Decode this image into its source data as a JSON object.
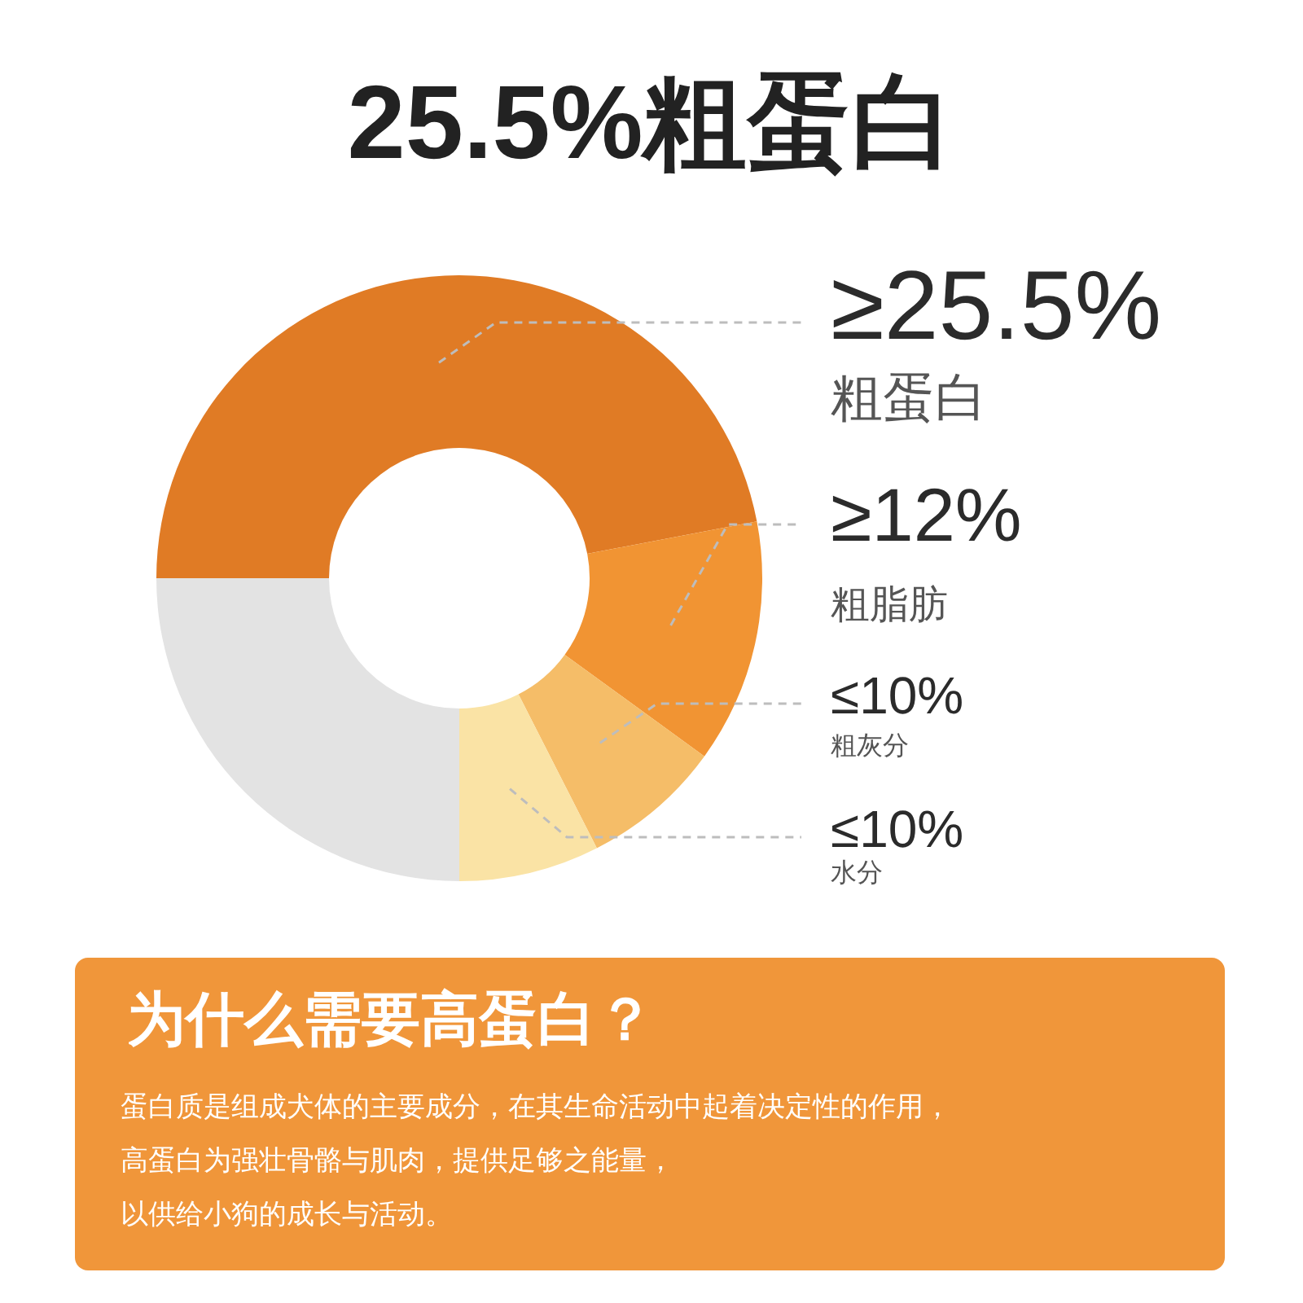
{
  "chart_data": {
    "type": "donut",
    "title": "25.5%粗蛋白",
    "categories": [
      "粗蛋白",
      "粗脂肪",
      "粗灰分",
      "水分",
      null
    ],
    "values": [
      47,
      13,
      7.5,
      7.5,
      25
    ],
    "value_labels": [
      "≥25.5%",
      "≥12%",
      "≤10%",
      "≤10%",
      null
    ],
    "colors": [
      "#e07b25",
      "#f19433",
      "#f5bd68",
      "#fae3a5",
      "#e3e3e3"
    ],
    "annotations": [
      "为什么需要高蛋白？",
      "蛋白质是组成犬体的主要成分，在其生命活动中起着决定性的作用，",
      "高蛋白为强壮骨骼与肌肉，提供足够之能量，",
      "以供给小狗的成长与活动。"
    ]
  }
}
